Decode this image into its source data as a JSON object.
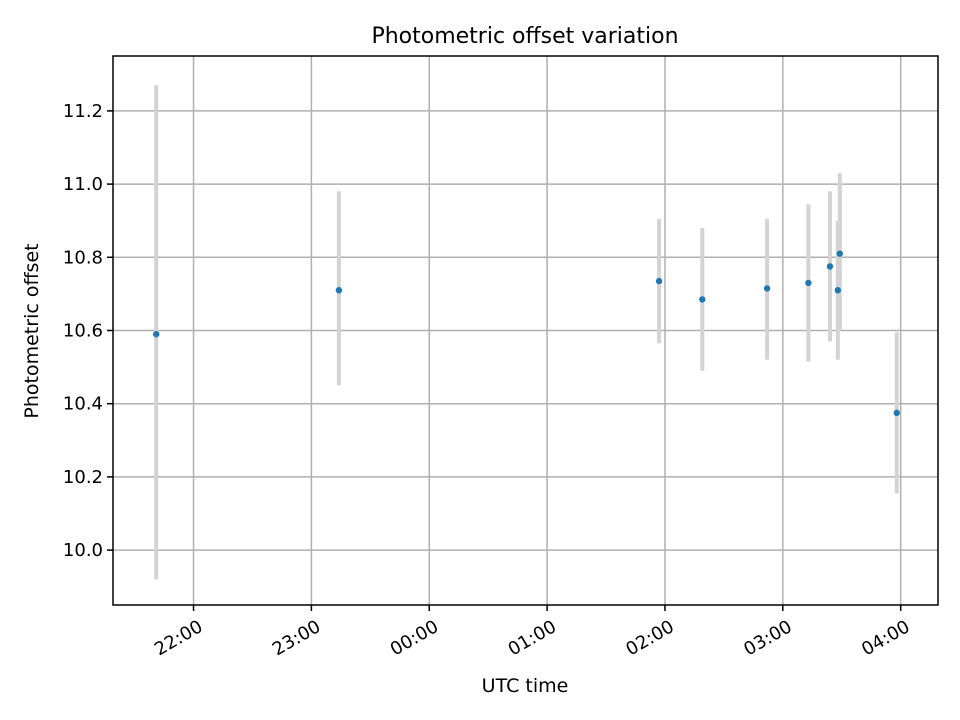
{
  "chart_data": {
    "type": "scatter",
    "title": "Photometric offset variation",
    "xlabel": "UTC time",
    "ylabel": "Photometric offset",
    "x_reference_minutes_note": "",
    "xlim": [
      "21:19",
      "04:19"
    ],
    "ylim": [
      9.85,
      11.35
    ],
    "x_ticks": [
      "22:00",
      "23:00",
      "00:00",
      "01:00",
      "02:00",
      "03:00",
      "04:00"
    ],
    "y_ticks": [
      10.0,
      10.2,
      10.4,
      10.6,
      10.8,
      11.0,
      11.2
    ],
    "y_tick_labels": [
      "10.0",
      "10.2",
      "10.4",
      "10.6",
      "10.8",
      "11.0",
      "11.2"
    ],
    "grid": true,
    "marker_color": "#1f77b4",
    "errorbar_color": "#d3d3d3",
    "points": [
      {
        "time": "21:41",
        "y": 10.59,
        "ylow": 9.92,
        "yhigh": 11.27
      },
      {
        "time": "23:14",
        "y": 10.71,
        "ylow": 10.45,
        "yhigh": 10.98
      },
      {
        "time": "01:57",
        "y": 10.735,
        "ylow": 10.565,
        "yhigh": 10.905
      },
      {
        "time": "02:19",
        "y": 10.685,
        "ylow": 10.49,
        "yhigh": 10.88
      },
      {
        "time": "02:52",
        "y": 10.715,
        "ylow": 10.52,
        "yhigh": 10.905
      },
      {
        "time": "03:13",
        "y": 10.73,
        "ylow": 10.515,
        "yhigh": 10.945
      },
      {
        "time": "03:24",
        "y": 10.775,
        "ylow": 10.57,
        "yhigh": 10.98
      },
      {
        "time": "03:28",
        "y": 10.71,
        "ylow": 10.52,
        "yhigh": 10.9
      },
      {
        "time": "03:29",
        "y": 10.81,
        "ylow": 10.6,
        "yhigh": 11.03
      },
      {
        "time": "03:58",
        "y": 10.375,
        "ylow": 10.155,
        "yhigh": 10.595
      }
    ]
  }
}
